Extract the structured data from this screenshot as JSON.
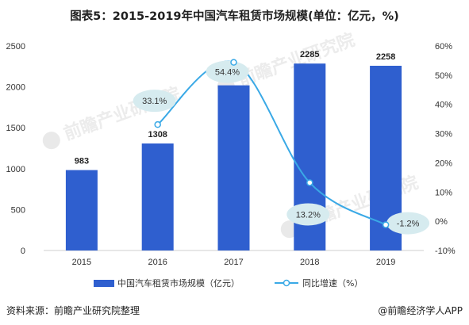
{
  "title": "图表5：2015-2019年中国汽车租赁市场规模(单位：亿元，%)",
  "source": "资料来源：前瞻产业研究院整理",
  "brand": "@前瞻经济学人APP",
  "watermark": "前瞻产业研究院",
  "colors": {
    "bar": "#2f5fcf",
    "line": "#3aa9e6",
    "bubble": "#d6ebef"
  },
  "chart_data": {
    "type": "bar",
    "categories": [
      "2015",
      "2016",
      "2017",
      "2018",
      "2019"
    ],
    "series": [
      {
        "name": "中国汽车租赁市场规模（亿元）",
        "type": "bar",
        "axis": "left",
        "values": [
          983,
          1308,
          2019,
          2285,
          2258
        ]
      },
      {
        "name": "同比增速（%）",
        "type": "line",
        "axis": "right",
        "values": [
          null,
          33.1,
          54.4,
          13.2,
          -1.2
        ]
      }
    ],
    "bar_labels": [
      "983",
      "1308",
      "2019",
      "2285",
      "2258"
    ],
    "line_labels": [
      "",
      "33.1%",
      "54.4%",
      "13.2%",
      "-1.2%"
    ],
    "y_left": {
      "ylim": [
        0,
        2500
      ],
      "ticks": [
        "0",
        "500",
        "1000",
        "1500",
        "2000",
        "2500"
      ]
    },
    "y_right": {
      "ylim": [
        -10,
        60
      ],
      "ticks": [
        "-10%",
        "0%",
        "10%",
        "20%",
        "30%",
        "40%",
        "50%",
        "60%"
      ]
    },
    "legend": [
      "中国汽车租赁市场规模（亿元）",
      "同比增速（%）"
    ],
    "legend_position": "bottom",
    "grid": false
  }
}
